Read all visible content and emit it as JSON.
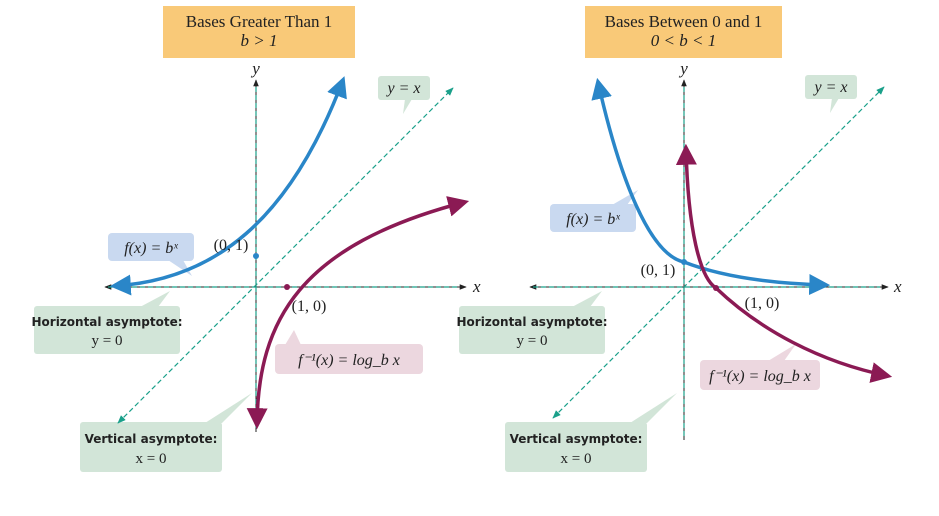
{
  "left_panel": {
    "title": "Bases Greater Than 1",
    "condition": "b > 1",
    "axis_x": "x",
    "axis_y": "y",
    "line_label": "y = x",
    "exp_label": "f(x) = bˣ",
    "log_label": "f⁻¹(x) = log_b x",
    "point_exp": "(0, 1)",
    "point_log": "(1, 0)",
    "h_asymptote_title": "Horizontal asymptote:",
    "h_asymptote_eq": "y = 0",
    "v_asymptote_title": "Vertical asymptote:",
    "v_asymptote_eq": "x = 0"
  },
  "right_panel": {
    "title": "Bases Between 0 and 1",
    "condition": "0 < b < 1",
    "axis_x": "x",
    "axis_y": "y",
    "line_label": "y = x",
    "exp_label": "f(x) = bˣ",
    "log_label": "f⁻¹(x) = log_b x",
    "point_exp": "(0, 1)",
    "point_log": "(1, 0)",
    "h_asymptote_title": "Horizontal asymptote:",
    "h_asymptote_eq": "y = 0",
    "v_asymptote_title": "Vertical asymptote:",
    "v_asymptote_eq": "x = 0"
  },
  "colors": {
    "exp_curve": "#2a86c8",
    "log_curve": "#8b1a54",
    "identity_line": "#1aa08a",
    "axis": "#222222",
    "title_box": "#f9c978",
    "green_box": "#d2e5d8",
    "blue_box": "#c9d9f0",
    "pink_box": "#ecd7df"
  }
}
